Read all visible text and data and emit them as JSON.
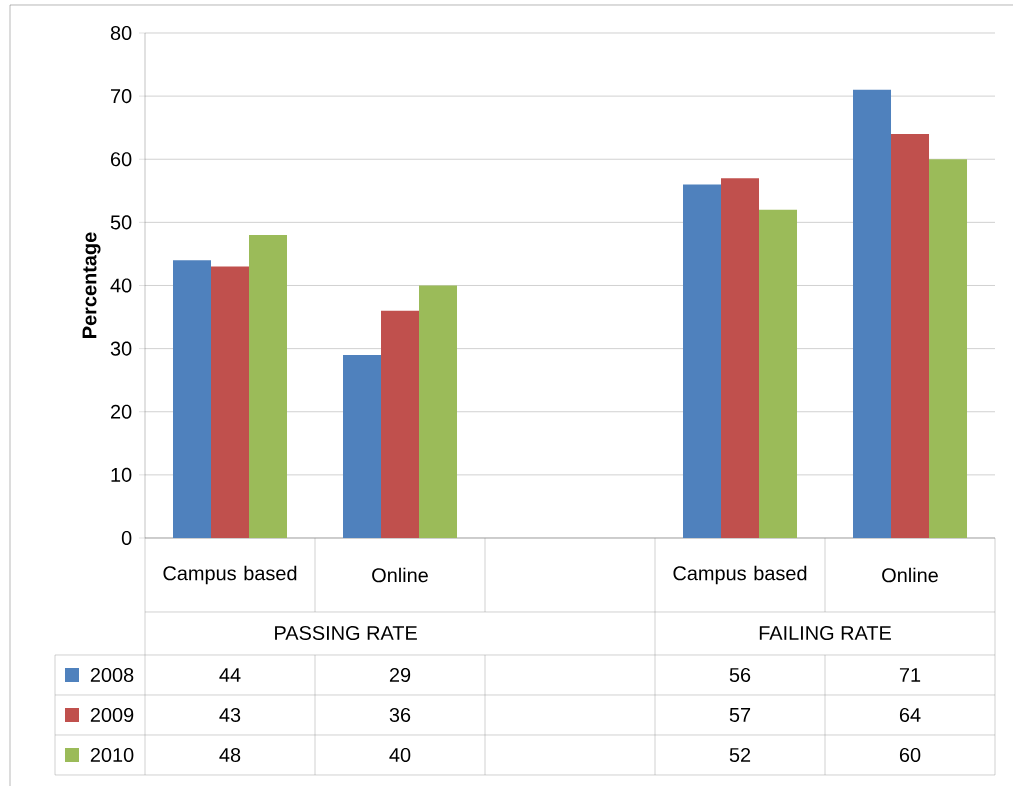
{
  "chart_data": {
    "type": "bar",
    "ylabel": "Percentage",
    "categories": [
      "Campus based",
      "Online",
      null,
      "Campus based",
      "Online"
    ],
    "series": [
      {
        "name": "2008",
        "color": "#4f81bd",
        "values": [
          44,
          29,
          null,
          56,
          71
        ]
      },
      {
        "name": "2009",
        "color": "#c0504d",
        "values": [
          43,
          36,
          null,
          57,
          64
        ]
      },
      {
        "name": "2010",
        "color": "#9bbb59",
        "values": [
          48,
          40,
          null,
          52,
          60
        ]
      }
    ],
    "annotations": [
      "PASSING RATE",
      "FAILING RATE"
    ],
    "ylim": [
      0,
      80
    ],
    "yticks": [
      0,
      10,
      20,
      30,
      40,
      50,
      60,
      70,
      80
    ],
    "grid": "y",
    "legend": "bottom",
    "data_labels": true
  }
}
